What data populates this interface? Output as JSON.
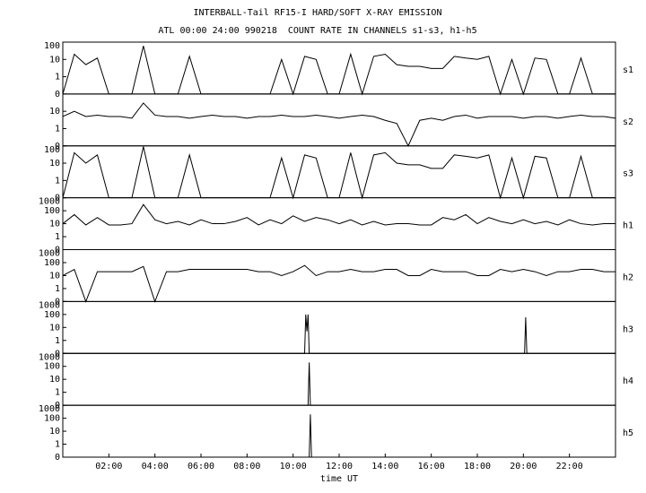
{
  "chart_data": [
    {
      "type": "line",
      "title": "INTERBALL-Tail RF15-I HARD/SOFT X-RAY EMISSION",
      "subtitle": "ATL 00:00 24:00 990218  COUNT RATE IN CHANNELS s1-s3, h1-h5",
      "ylabel": "s1",
      "yscale": "pseudo-log",
      "color": "#000000",
      "xlim": [
        0,
        24
      ],
      "ylim": [
        0,
        100
      ],
      "yticks": [
        0,
        1,
        10,
        100
      ],
      "x": [
        0,
        0.5,
        1,
        1.5,
        2,
        2.5,
        3,
        3.5,
        4,
        4.5,
        5,
        5.5,
        6,
        6.5,
        7,
        7.5,
        8,
        8.5,
        9,
        9.5,
        10,
        10.5,
        11,
        11.5,
        12,
        12.5,
        13,
        13.5,
        14,
        14.5,
        15,
        15.5,
        16,
        16.5,
        17,
        17.5,
        18,
        18.5,
        19,
        19.5,
        20,
        20.5,
        21,
        21.5,
        22,
        22.5,
        23,
        23.5,
        24
      ],
      "values": [
        0,
        20,
        5,
        12,
        0,
        0,
        0,
        60,
        0,
        0,
        0,
        15,
        0,
        0,
        0,
        0,
        0,
        0,
        0,
        10,
        0,
        15,
        10,
        0,
        0,
        20,
        0,
        15,
        20,
        5,
        4,
        4,
        3,
        3,
        15,
        12,
        10,
        15,
        0,
        10,
        0,
        12,
        10,
        0,
        0,
        12,
        0,
        0,
        0
      ]
    },
    {
      "type": "line",
      "ylabel": "s2",
      "yscale": "pseudo-log",
      "color": "#000000",
      "xlim": [
        0,
        24
      ],
      "ylim": [
        0,
        100
      ],
      "yticks": [
        0,
        1,
        10
      ],
      "x": [
        0,
        0.5,
        1,
        1.5,
        2,
        2.5,
        3,
        3.5,
        4,
        4.5,
        5,
        5.5,
        6,
        6.5,
        7,
        7.5,
        8,
        8.5,
        9,
        9.5,
        10,
        10.5,
        11,
        11.5,
        12,
        12.5,
        13,
        13.5,
        14,
        14.5,
        15,
        15.5,
        16,
        16.5,
        17,
        17.5,
        18,
        18.5,
        19,
        19.5,
        20,
        20.5,
        21,
        21.5,
        22,
        22.5,
        23,
        23.5,
        24
      ],
      "values": [
        5,
        10,
        5,
        6,
        5,
        5,
        4,
        30,
        6,
        5,
        5,
        4,
        5,
        6,
        5,
        5,
        4,
        5,
        5,
        6,
        5,
        5,
        6,
        5,
        4,
        5,
        6,
        5,
        3,
        2,
        0,
        3,
        4,
        3,
        5,
        6,
        4,
        5,
        5,
        5,
        4,
        5,
        5,
        4,
        5,
        6,
        5,
        5,
        4
      ]
    },
    {
      "type": "line",
      "ylabel": "s3",
      "yscale": "pseudo-log",
      "color": "#000000",
      "xlim": [
        0,
        24
      ],
      "ylim": [
        0,
        100
      ],
      "yticks": [
        0,
        1,
        10,
        100
      ],
      "x": [
        0,
        0.5,
        1,
        1.5,
        2,
        2.5,
        3,
        3.5,
        4,
        4.5,
        5,
        5.5,
        6,
        6.5,
        7,
        7.5,
        8,
        8.5,
        9,
        9.5,
        10,
        10.5,
        11,
        11.5,
        12,
        12.5,
        13,
        13.5,
        14,
        14.5,
        15,
        15.5,
        16,
        16.5,
        17,
        17.5,
        18,
        18.5,
        19,
        19.5,
        20,
        20.5,
        21,
        21.5,
        22,
        22.5,
        23,
        23.5,
        24
      ],
      "values": [
        0,
        40,
        10,
        30,
        0,
        0,
        0,
        90,
        0,
        0,
        0,
        30,
        0,
        0,
        0,
        0,
        0,
        0,
        0,
        20,
        0,
        30,
        20,
        0,
        0,
        40,
        0,
        30,
        40,
        10,
        8,
        8,
        5,
        5,
        30,
        25,
        20,
        30,
        0,
        20,
        0,
        25,
        20,
        0,
        0,
        25,
        0,
        0,
        0
      ]
    },
    {
      "type": "line",
      "ylabel": "h1",
      "yscale": "pseudo-log",
      "color": "#000000",
      "xlim": [
        0,
        24
      ],
      "ylim": [
        0,
        1000
      ],
      "yticks": [
        0,
        1,
        10,
        100,
        1000
      ],
      "x": [
        0,
        0.5,
        1,
        1.5,
        2,
        2.5,
        3,
        3.5,
        4,
        4.5,
        5,
        5.5,
        6,
        6.5,
        7,
        7.5,
        8,
        8.5,
        9,
        9.5,
        10,
        10.5,
        11,
        11.5,
        12,
        12.5,
        13,
        13.5,
        14,
        14.5,
        15,
        15.5,
        16,
        16.5,
        17,
        17.5,
        18,
        18.5,
        19,
        19.5,
        20,
        20.5,
        21,
        21.5,
        22,
        22.5,
        23,
        23.5,
        24
      ],
      "values": [
        10,
        50,
        8,
        30,
        8,
        8,
        10,
        300,
        20,
        10,
        15,
        8,
        20,
        10,
        10,
        15,
        30,
        8,
        20,
        10,
        40,
        15,
        30,
        20,
        10,
        20,
        8,
        15,
        8,
        10,
        10,
        8,
        8,
        30,
        20,
        50,
        10,
        30,
        15,
        10,
        20,
        10,
        15,
        8,
        20,
        10,
        8,
        10,
        10
      ]
    },
    {
      "type": "line",
      "ylabel": "h2",
      "yscale": "pseudo-log",
      "color": "#000000",
      "xlim": [
        0,
        24
      ],
      "ylim": [
        0,
        1000
      ],
      "yticks": [
        0,
        1,
        10,
        100,
        1000
      ],
      "x": [
        0,
        0.5,
        1,
        1.5,
        2,
        2.5,
        3,
        3.5,
        4,
        4.5,
        5,
        5.5,
        6,
        6.5,
        7,
        7.5,
        8,
        8.5,
        9,
        9.5,
        10,
        10.5,
        11,
        11.5,
        12,
        12.5,
        13,
        13.5,
        14,
        14.5,
        15,
        15.5,
        16,
        16.5,
        17,
        17.5,
        18,
        18.5,
        19,
        19.5,
        20,
        20.5,
        21,
        21.5,
        22,
        22.5,
        23,
        23.5,
        24
      ],
      "values": [
        10,
        30,
        0,
        20,
        20,
        20,
        20,
        50,
        0,
        20,
        20,
        30,
        30,
        30,
        30,
        30,
        30,
        20,
        20,
        10,
        20,
        60,
        10,
        20,
        20,
        30,
        20,
        20,
        30,
        30,
        10,
        10,
        30,
        20,
        20,
        20,
        10,
        10,
        30,
        20,
        30,
        20,
        10,
        20,
        20,
        30,
        30,
        20,
        20
      ]
    },
    {
      "type": "line",
      "ylabel": "h3",
      "yscale": "pseudo-log",
      "color": "#000000",
      "xlim": [
        0,
        24
      ],
      "ylim": [
        0,
        1000
      ],
      "yticks": [
        0,
        1,
        10,
        100,
        1000
      ],
      "x": [
        0,
        10.5,
        10.55,
        10.6,
        10.65,
        10.7,
        20,
        20.05,
        20.1,
        20.15,
        24
      ],
      "values": [
        0,
        0,
        100,
        5,
        100,
        0,
        0,
        0,
        60,
        0,
        0
      ]
    },
    {
      "type": "line",
      "ylabel": "h4",
      "yscale": "pseudo-log",
      "color": "#000000",
      "xlim": [
        0,
        24
      ],
      "ylim": [
        0,
        1000
      ],
      "yticks": [
        0,
        1,
        10,
        100,
        1000
      ],
      "x": [
        0,
        10.65,
        10.7,
        10.75,
        24
      ],
      "values": [
        0,
        0,
        200,
        0,
        0
      ]
    },
    {
      "type": "line",
      "ylabel": "h5",
      "yscale": "pseudo-log",
      "color": "#000000",
      "xlim": [
        0,
        24
      ],
      "ylim": [
        0,
        1000
      ],
      "yticks": [
        0,
        1,
        10,
        100,
        1000
      ],
      "x": [
        0,
        10.7,
        10.75,
        10.8,
        24
      ],
      "values": [
        0,
        0,
        200,
        0,
        0
      ],
      "xlabel": "time UT",
      "xticks": [
        {
          "value": 2,
          "label": "02:00"
        },
        {
          "value": 4,
          "label": "04:00"
        },
        {
          "value": 6,
          "label": "06:00"
        },
        {
          "value": 8,
          "label": "08:00"
        },
        {
          "value": 10,
          "label": "10:00"
        },
        {
          "value": 12,
          "label": "12:00"
        },
        {
          "value": 14,
          "label": "14:00"
        },
        {
          "value": 16,
          "label": "16:00"
        },
        {
          "value": 18,
          "label": "18:00"
        },
        {
          "value": 20,
          "label": "20:00"
        },
        {
          "value": 22,
          "label": "22:00"
        }
      ]
    }
  ]
}
